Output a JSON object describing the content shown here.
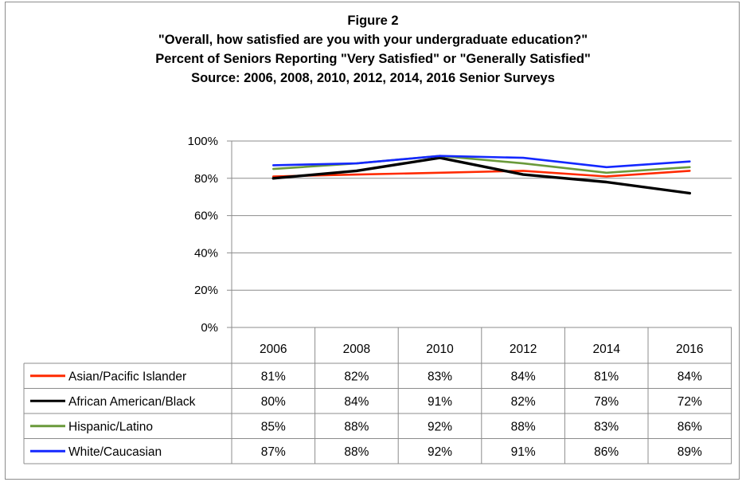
{
  "chart_data": {
    "type": "line",
    "title": "Figure 2",
    "subtitle_lines": [
      "\"Overall, how satisfied are you with your undergraduate education?\"",
      "Percent of Seniors Reporting \"Very Satisfied\" or \"Generally Satisfied\"",
      "Source: 2006, 2008, 2010, 2012, 2014, 2016 Senior Surveys"
    ],
    "categories": [
      "2006",
      "2008",
      "2010",
      "2012",
      "2014",
      "2016"
    ],
    "y_ticks": [
      "0%",
      "20%",
      "40%",
      "60%",
      "80%",
      "100%"
    ],
    "ylim": [
      0,
      100
    ],
    "grid": true,
    "legend": "data-table",
    "series": [
      {
        "name": "Asian/Pacific Islander",
        "color": "#ff2a00",
        "values": [
          81,
          82,
          83,
          84,
          81,
          84
        ],
        "labels": [
          "81%",
          "82%",
          "83%",
          "84%",
          "81%",
          "84%"
        ]
      },
      {
        "name": "African American/Black",
        "color": "#000000",
        "values": [
          80,
          84,
          91,
          82,
          78,
          72
        ],
        "labels": [
          "80%",
          "84%",
          "91%",
          "82%",
          "78%",
          "72%"
        ]
      },
      {
        "name": "Hispanic/Latino",
        "color": "#6a9a3b",
        "values": [
          85,
          88,
          92,
          88,
          83,
          86
        ],
        "labels": [
          "85%",
          "88%",
          "92%",
          "88%",
          "83%",
          "86%"
        ]
      },
      {
        "name": "White/Caucasian",
        "color": "#1428ff",
        "values": [
          87,
          88,
          92,
          91,
          86,
          89
        ],
        "labels": [
          "87%",
          "88%",
          "92%",
          "91%",
          "86%",
          "89%"
        ]
      }
    ]
  }
}
